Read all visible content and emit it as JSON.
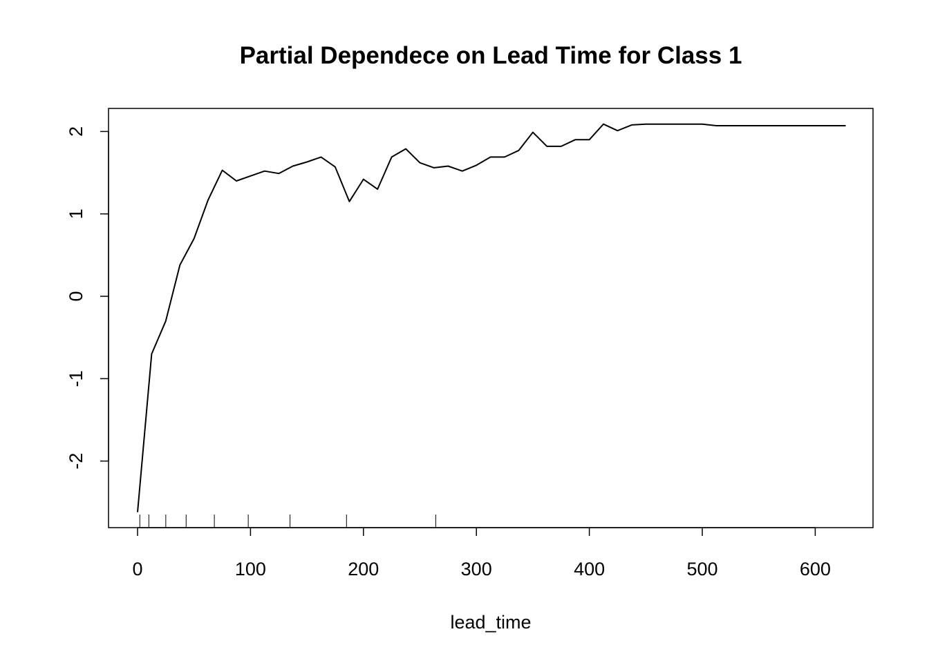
{
  "chart_data": {
    "type": "line",
    "title": "Partial Dependece on Lead Time for Class 1",
    "xlabel": "lead_time",
    "ylabel": "",
    "xlim": [
      0,
      627
    ],
    "ylim": [
      -2.62,
      2.08
    ],
    "x_ticks": [
      0,
      100,
      200,
      300,
      400,
      500,
      600
    ],
    "y_ticks": [
      -2,
      -1,
      0,
      1,
      2
    ],
    "grid": false,
    "legend": "none",
    "line_color": "#000000",
    "series": [
      {
        "x": [
          0,
          12.5,
          25,
          37.5,
          50,
          62.5,
          75,
          87.5,
          100,
          112.5,
          125,
          137.5,
          150,
          162.5,
          175,
          187.5,
          200,
          212.5,
          225,
          237.5,
          250,
          262.5,
          275,
          287.5,
          300,
          312.5,
          325,
          337.5,
          350,
          362.5,
          375,
          387.5,
          400,
          412.5,
          425,
          437.5,
          450,
          462.5,
          475,
          487.5,
          500,
          512.5,
          525,
          537.5,
          550,
          562.5,
          575,
          587.5,
          600,
          612.5,
          627
        ],
        "values": [
          -2.62,
          -0.7,
          -0.3,
          0.38,
          0.7,
          1.17,
          1.53,
          1.4,
          1.46,
          1.52,
          1.49,
          1.58,
          1.63,
          1.69,
          1.57,
          1.15,
          1.42,
          1.3,
          1.69,
          1.79,
          1.62,
          1.56,
          1.58,
          1.52,
          1.59,
          1.69,
          1.69,
          1.77,
          1.99,
          1.82,
          1.82,
          1.9,
          1.9,
          2.09,
          2.01,
          2.08,
          2.09,
          2.09,
          2.09,
          2.09,
          2.09,
          2.07,
          2.07,
          2.07,
          2.07,
          2.07,
          2.07,
          2.07,
          2.07,
          2.07,
          2.07
        ]
      }
    ],
    "rug": [
      2,
      10,
      25,
      43,
      68,
      98,
      135,
      185,
      264
    ]
  }
}
